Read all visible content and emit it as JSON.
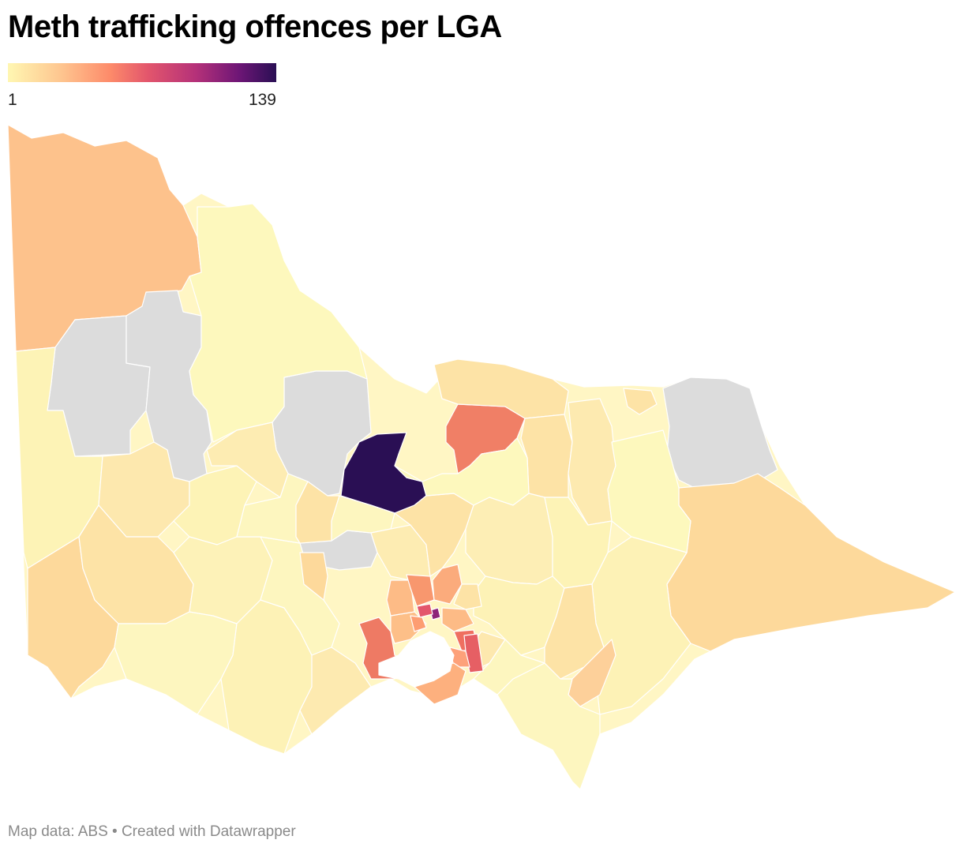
{
  "title": "Meth trafficking offences per LGA",
  "legend": {
    "min_label": "1",
    "max_label": "139",
    "min": 1,
    "max": 139,
    "colors": [
      "#fff7b2",
      "#fec58f",
      "#fd8b6a",
      "#e3566c",
      "#b53179",
      "#6e1676",
      "#2a0f54"
    ]
  },
  "map": {
    "no_data_color": "#dcdcdc",
    "region": "Victoria, Australia (Local Government Areas)"
  },
  "footer": "Map data: ABS • Created with Datawrapper"
}
